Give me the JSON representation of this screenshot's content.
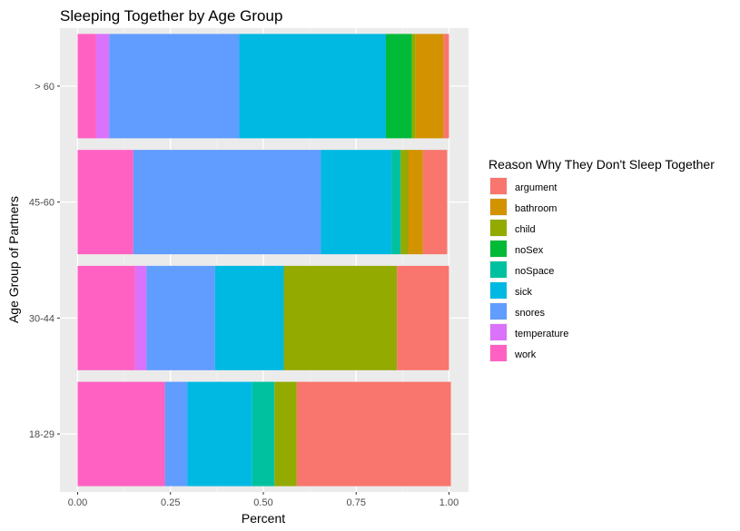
{
  "chart_data": {
    "type": "bar",
    "orientation": "horizontal",
    "stacked": true,
    "title": "Sleeping Together by Age Group",
    "xlabel": "Percent",
    "ylabel": "Age Group of Partners",
    "xlim": [
      0,
      1
    ],
    "x_ticks": [
      "0.00",
      "0.25",
      "0.50",
      "0.75",
      "1.00"
    ],
    "x_tick_values": [
      0,
      0.25,
      0.5,
      0.75,
      1.0
    ],
    "categories": [
      "18-29",
      "30-44",
      "45-60",
      "> 60"
    ],
    "grid": true,
    "legend": {
      "title": "Reason Why They Don't Sleep Together",
      "position": "right"
    },
    "stack_order": [
      "work",
      "temperature",
      "snores",
      "sick",
      "noSpace",
      "noSex",
      "child",
      "bathroom",
      "argument"
    ],
    "series": [
      {
        "name": "argument",
        "color": "#F8766D",
        "values": [
          0.415,
          0.14,
          0.065,
          0.015
        ]
      },
      {
        "name": "bathroom",
        "color": "#D39200",
        "values": [
          0.0,
          0.0,
          0.04,
          0.075
        ]
      },
      {
        "name": "child",
        "color": "#93AA00",
        "values": [
          0.06,
          0.305,
          0.02,
          0.01
        ]
      },
      {
        "name": "noSex",
        "color": "#00BA38",
        "values": [
          0.0,
          0.0,
          0.0,
          0.07
        ]
      },
      {
        "name": "noSpace",
        "color": "#00C19F",
        "values": [
          0.06,
          0.0,
          0.025,
          0.0
        ]
      },
      {
        "name": "sick",
        "color": "#00B9E3",
        "values": [
          0.175,
          0.185,
          0.19,
          0.395
        ]
      },
      {
        "name": "snores",
        "color": "#619CFF",
        "values": [
          0.06,
          0.185,
          0.505,
          0.35
        ]
      },
      {
        "name": "temperature",
        "color": "#DB72FB",
        "values": [
          0.0,
          0.03,
          0.0,
          0.035
        ]
      },
      {
        "name": "work",
        "color": "#FF61C3",
        "values": [
          0.235,
          0.155,
          0.15,
          0.05
        ]
      }
    ]
  }
}
